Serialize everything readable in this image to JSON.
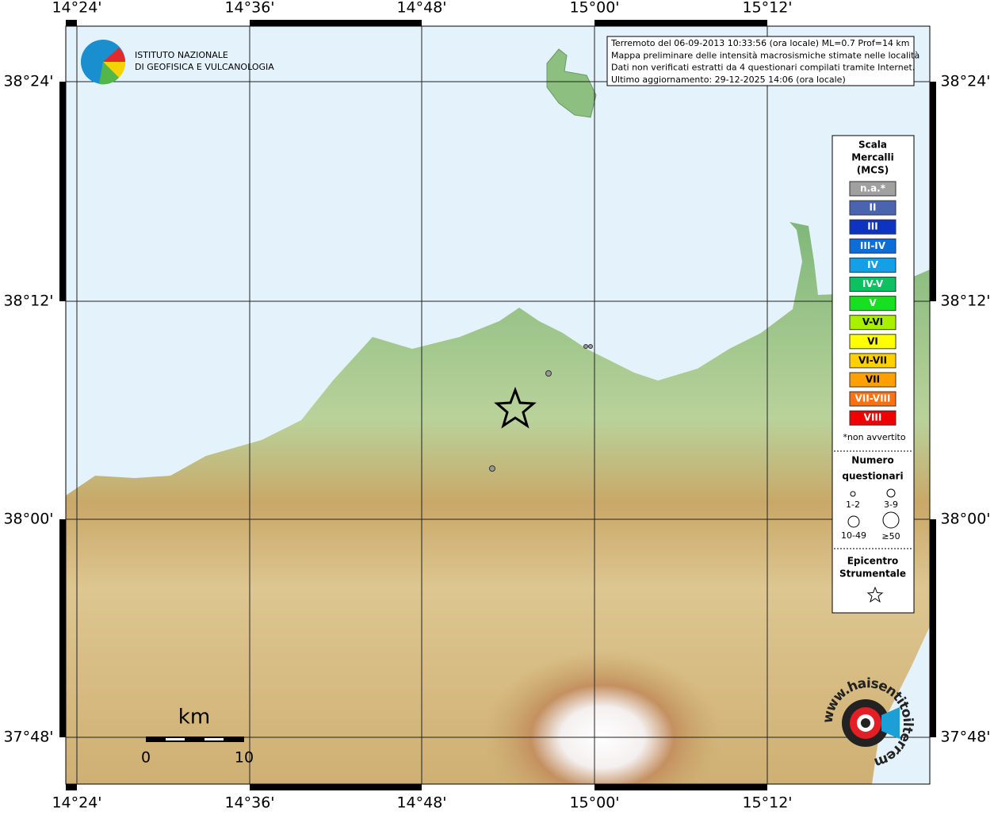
{
  "map": {
    "lon_labels": [
      "14°24'",
      "14°36'",
      "14°48'",
      "15°00'",
      "15°12'"
    ],
    "lat_labels": [
      "38°24'",
      "38°12'",
      "38°00'",
      "37°48'"
    ],
    "logo": [
      "ISTITUTO NAZIONALE",
      "DI GEOFISICA E VULCANOLOGIA"
    ],
    "info": [
      "Terremoto del 06-09-2013 10:33:56 (ora locale) ML=0.7 Prof=14 km",
      "Mappa preliminare delle intensità macrosismiche stimate nelle località",
      "Dati non verificati estratti da 4 questionari compilati tramite Internet.",
      "Ultimo aggiornamento: 29-12-2025 14:06 (ora locale)"
    ],
    "legend": {
      "title": [
        "Scala",
        "Mercalli",
        "(MCS)"
      ],
      "scale": [
        {
          "label": "n.a.*",
          "color": "#a0a0a0"
        },
        {
          "label": "II",
          "color": "#4a64b0"
        },
        {
          "label": "III",
          "color": "#0c34c0"
        },
        {
          "label": "III-IV",
          "color": "#0c6cd8"
        },
        {
          "label": "IV",
          "color": "#14a0e8"
        },
        {
          "label": "IV-V",
          "color": "#10c060"
        },
        {
          "label": "V",
          "color": "#18e020"
        },
        {
          "label": "V-VI",
          "color": "#a8f000"
        },
        {
          "label": "VI",
          "color": "#ffff00"
        },
        {
          "label": "VI-VII",
          "color": "#ffd000"
        },
        {
          "label": "VII",
          "color": "#ffa000"
        },
        {
          "label": "VII-VIII",
          "color": "#ff7010"
        },
        {
          "label": "VIII",
          "color": "#f00000"
        }
      ],
      "note": "*non avvertito",
      "count_title": [
        "Numero",
        "questionari"
      ],
      "count_labels": [
        "1-2",
        "3-9",
        "10-49",
        "≥50"
      ],
      "epicenter_title": [
        "Epicentro",
        "Strumentale"
      ]
    },
    "scalebar": {
      "unit": "km",
      "labels": [
        "0",
        "10"
      ]
    },
    "watermark": "www.haisentitoilterremoto.it"
  }
}
